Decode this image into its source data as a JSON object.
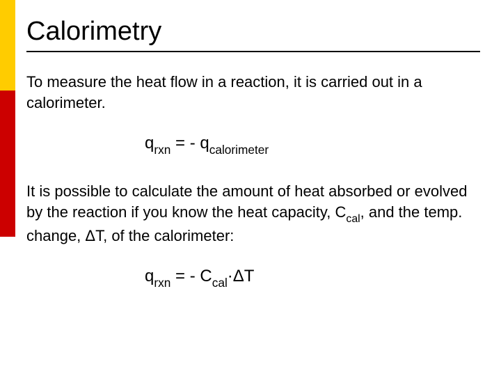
{
  "accent": {
    "yellow": "#ffcc00",
    "red": "#cc0000"
  },
  "title": {
    "text": "Calorimetry",
    "fontsize": 38,
    "color": "#000000",
    "underline_color": "#000000"
  },
  "paragraph1": {
    "text": "To measure the heat flow in a reaction, it is carried out in a calorimeter.",
    "fontsize": 22
  },
  "equation1": {
    "q1_base": "q",
    "q1_sub": "rxn",
    "eq": " = - ",
    "q2_base": "q",
    "q2_sub": "calorimeter",
    "fontsize": 24
  },
  "paragraph2": {
    "part1": "It is possible to calculate the amount of heat absorbed or evolved by the reaction if you know the heat capacity, C",
    "sub1": "cal",
    "part2": ", and the temp. change, ΔT, of the calorimeter:",
    "fontsize": 22
  },
  "equation2": {
    "q_base": "q",
    "q_sub": "rxn",
    "mid": " = - C",
    "c_sub": "cal",
    "tail": "·ΔT",
    "fontsize": 24
  }
}
